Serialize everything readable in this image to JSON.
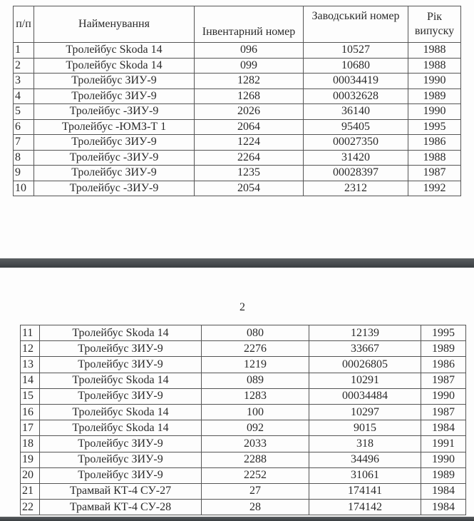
{
  "table1": {
    "headers": [
      "п/п",
      "Найменування",
      "Інвентарний номер",
      "Заводський номер",
      "Рік випуску"
    ],
    "rows": [
      [
        "1",
        "Тролейбус Skoda 14",
        "096",
        "10527",
        "1988"
      ],
      [
        "2",
        "Тролейбус Skoda 14",
        "099",
        "10680",
        "1988"
      ],
      [
        "3",
        "Тролейбус ЗИУ-9",
        "1282",
        "00034419",
        "1990"
      ],
      [
        "4",
        "Тролейбус ЗИУ-9",
        "1268",
        "00032628",
        "1989"
      ],
      [
        "5",
        "Тролейбус -ЗИУ-9",
        "2026",
        "36140",
        "1990"
      ],
      [
        "6",
        "Тролейбус -ЮМЗ-Т 1",
        "2064",
        "95405",
        "1995"
      ],
      [
        "7",
        "Тролейбус ЗИУ-9",
        "1224",
        "00027350",
        "1986"
      ],
      [
        "8",
        "Тролейбус -ЗИУ-9",
        "2264",
        "31420",
        "1988"
      ],
      [
        "9",
        "Тролейбус ЗИУ-9",
        "1235",
        "00028397",
        "1987"
      ],
      [
        "10",
        "Тролейбус -ЗИУ-9",
        "2054",
        "2312",
        "1992"
      ]
    ]
  },
  "page_number": "2",
  "table2": {
    "rows": [
      [
        "11",
        "Тролейбус Skoda 14",
        "080",
        "12139",
        "1995"
      ],
      [
        "12",
        "Тролейбус ЗИУ-9",
        "2276",
        "33667",
        "1989"
      ],
      [
        "13",
        "Тролейбус ЗИУ-9",
        "1219",
        "00026805",
        "1986"
      ],
      [
        "14",
        "Тролейбус Skoda 14",
        "089",
        "10291",
        "1987"
      ],
      [
        "15",
        "Тролейбус ЗИУ-9",
        "1283",
        "00034484",
        "1990"
      ],
      [
        "16",
        "Тролейбус Skoda 14",
        "100",
        "10297",
        "1987"
      ],
      [
        "17",
        "Тролейбус Skoda 14",
        "092",
        "9015",
        "1984"
      ],
      [
        "18",
        "Тролейбус ЗИУ-9",
        "2033",
        "318",
        "1991"
      ],
      [
        "19",
        "Тролейбус ЗИУ-9",
        "2288",
        "34496",
        "1990"
      ],
      [
        "20",
        "Тролейбус ЗИУ-9",
        "2252",
        "31061",
        "1989"
      ],
      [
        "21",
        "Трамвай КТ-4 СУ-27",
        "27",
        "174141",
        "1984"
      ],
      [
        "22",
        "Трамвай КТ-4 СУ-28",
        "28",
        "174142",
        "1984"
      ]
    ]
  }
}
